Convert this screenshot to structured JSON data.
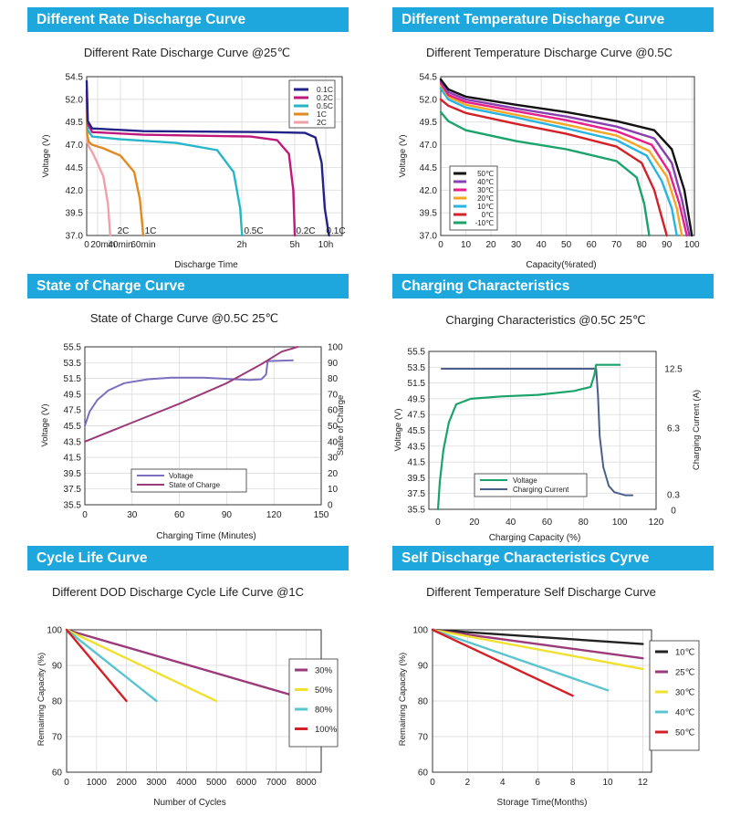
{
  "panels": [
    {
      "heading": "Different Rate Discharge Curve"
    },
    {
      "heading": "Different Temperature Discharge Curve"
    },
    {
      "heading": "State of Charge Curve"
    },
    {
      "heading": "Charging Characteristics"
    },
    {
      "heading": "Cycle Life Curve"
    },
    {
      "heading": "Self Discharge Characteristics Cyrve"
    }
  ],
  "chart_data": [
    {
      "type": "line",
      "title": "Different Rate Discharge Curve @25℃",
      "xlabel": "Discharge Time",
      "ylabel": "Voltage (V)",
      "ylim": [
        37,
        54.5
      ],
      "yticks": [
        "54.5",
        "52.0",
        "49.5",
        "47.0",
        "44.5",
        "42.0",
        "39.5",
        "37.0"
      ],
      "xticks": [
        {
          "t": 0,
          "label": "0"
        },
        {
          "t": 20,
          "label": "20min"
        },
        {
          "t": 40,
          "label": "40min"
        },
        {
          "t": 60,
          "label": "60min"
        },
        {
          "t": 120,
          "label": "2h"
        },
        {
          "t": 300,
          "label": "5h"
        },
        {
          "t": 600,
          "label": "10h"
        }
      ],
      "x_unit": "minutes",
      "series": [
        {
          "name": "0.1C",
          "color": "#222288",
          "points": [
            [
              0,
              54
            ],
            [
              2,
              49.6
            ],
            [
              10,
              48.8
            ],
            [
              60,
              48.5
            ],
            [
              200,
              48.4
            ],
            [
              400,
              48.3
            ],
            [
              500,
              47.8
            ],
            [
              560,
              45
            ],
            [
              590,
              40
            ],
            [
              605,
              37
            ]
          ]
        },
        {
          "name": "0.2C",
          "color": "#c0187a",
          "points": [
            [
              0,
              53
            ],
            [
              2,
              49.3
            ],
            [
              10,
              48.4
            ],
            [
              60,
              48.1
            ],
            [
              150,
              47.9
            ],
            [
              240,
              47.5
            ],
            [
              280,
              46
            ],
            [
              295,
              42
            ],
            [
              301,
              37
            ]
          ]
        },
        {
          "name": "0.5C",
          "color": "#27b6c8",
          "points": [
            [
              0,
              52.5
            ],
            [
              2,
              48.6
            ],
            [
              10,
              47.9
            ],
            [
              40,
              47.6
            ],
            [
              80,
              47.2
            ],
            [
              105,
              46.4
            ],
            [
              115,
              44
            ],
            [
              119,
              40
            ],
            [
              121,
              37
            ]
          ]
        },
        {
          "name": "1C",
          "color": "#e08a20",
          "points": [
            [
              0,
              52
            ],
            [
              1,
              48
            ],
            [
              4,
              47.3
            ],
            [
              10,
              47
            ],
            [
              25,
              46.6
            ],
            [
              40,
              45.8
            ],
            [
              52,
              44
            ],
            [
              57,
              41
            ],
            [
              60,
              37
            ]
          ]
        },
        {
          "name": "2C",
          "color": "#f0a0a8",
          "points": [
            [
              0,
              51
            ],
            [
              1,
              47.3
            ],
            [
              4,
              46.8
            ],
            [
              10,
              46.2
            ],
            [
              18,
              45.2
            ],
            [
              25,
              43.5
            ],
            [
              29,
              40.5
            ],
            [
              31,
              37
            ]
          ]
        }
      ],
      "point_labels": [
        "2C",
        "1C",
        "0.5C",
        "0.2C",
        "0.1C"
      ]
    },
    {
      "type": "line",
      "title": "Different Temperature Discharge Curve @0.5C",
      "xlabel": "Capacity(%rated)",
      "ylabel": "Voltage (V)",
      "xlim": [
        0,
        100
      ],
      "ylim": [
        37,
        54.5
      ],
      "yticks": [
        "54.5",
        "52.0",
        "49.5",
        "47.0",
        "44.5",
        "42.0",
        "39.5",
        "37.0"
      ],
      "xticks": [
        "0",
        "10",
        "20",
        "30",
        "40",
        "50",
        "60",
        "70",
        "80",
        "90",
        "100"
      ],
      "series": [
        {
          "name": "50℃",
          "color": "#111111",
          "points": [
            [
              0,
              54.2
            ],
            [
              3,
              53.1
            ],
            [
              10,
              52.3
            ],
            [
              30,
              51.4
            ],
            [
              50,
              50.6
            ],
            [
              70,
              49.6
            ],
            [
              85,
              48.6
            ],
            [
              92,
              46.5
            ],
            [
              97,
              42
            ],
            [
              100,
              37
            ]
          ]
        },
        {
          "name": "40℃",
          "color": "#8a3fb0",
          "points": [
            [
              0,
              54
            ],
            [
              3,
              52.8
            ],
            [
              10,
              52
            ],
            [
              30,
              51
            ],
            [
              50,
              50.1
            ],
            [
              70,
              49
            ],
            [
              85,
              47.7
            ],
            [
              92,
              45
            ],
            [
              96,
              41
            ],
            [
              99,
              37
            ]
          ]
        },
        {
          "name": "30℃",
          "color": "#e81e8a",
          "points": [
            [
              0,
              53.8
            ],
            [
              3,
              52.5
            ],
            [
              10,
              51.7
            ],
            [
              30,
              50.7
            ],
            [
              50,
              49.7
            ],
            [
              70,
              48.5
            ],
            [
              84,
              47
            ],
            [
              91,
              44
            ],
            [
              95,
              40.5
            ],
            [
              98,
              37
            ]
          ]
        },
        {
          "name": "20℃",
          "color": "#f5a623",
          "points": [
            [
              0,
              53.6
            ],
            [
              3,
              52.3
            ],
            [
              10,
              51.4
            ],
            [
              30,
              50.3
            ],
            [
              50,
              49.2
            ],
            [
              70,
              48
            ],
            [
              83,
              46.3
            ],
            [
              90,
              43.5
            ],
            [
              94,
              40
            ],
            [
              96,
              37
            ]
          ]
        },
        {
          "name": "10℃",
          "color": "#28b4e3",
          "points": [
            [
              0,
              53.2
            ],
            [
              3,
              52
            ],
            [
              10,
              51.1
            ],
            [
              30,
              50
            ],
            [
              50,
              48.8
            ],
            [
              70,
              47.5
            ],
            [
              82,
              45.8
            ],
            [
              88,
              43
            ],
            [
              92,
              40
            ],
            [
              94,
              37
            ]
          ]
        },
        {
          "name": "0℃",
          "color": "#d42027",
          "points": [
            [
              0,
              52
            ],
            [
              3,
              51.3
            ],
            [
              10,
              50.5
            ],
            [
              30,
              49.3
            ],
            [
              50,
              48.2
            ],
            [
              70,
              46.8
            ],
            [
              80,
              45
            ],
            [
              85,
              42
            ],
            [
              88,
              39
            ],
            [
              90,
              37
            ]
          ]
        },
        {
          "name": "-10℃",
          "color": "#1aa36a",
          "points": [
            [
              0,
              50.6
            ],
            [
              3,
              49.6
            ],
            [
              10,
              48.6
            ],
            [
              30,
              47.4
            ],
            [
              50,
              46.5
            ],
            [
              70,
              45.2
            ],
            [
              78,
              43.4
            ],
            [
              81,
              40.5
            ],
            [
              83,
              37
            ]
          ]
        }
      ]
    },
    {
      "type": "line",
      "title": "State of Charge Curve @0.5C 25℃",
      "xlabel": "Charging Time (Minutes)",
      "ylabel": "Voltage (V)",
      "y2label": "State of Charge",
      "xlim": [
        0,
        150
      ],
      "ylim": [
        35.5,
        55.5
      ],
      "y2lim": [
        0,
        100
      ],
      "yticks": [
        "55.5",
        "53.5",
        "51.5",
        "49.5",
        "47.5",
        "45.5",
        "43.5",
        "41.5",
        "39.5",
        "37.5",
        "35.5"
      ],
      "y2ticks": [
        "100",
        "90",
        "80",
        "70",
        "60",
        "50",
        "40",
        "30",
        "20",
        "10",
        "0"
      ],
      "xticks": [
        "0",
        "30",
        "60",
        "90",
        "120",
        "150"
      ],
      "series": [
        {
          "name": "Voltage",
          "axis": "left",
          "color": "#7b6fc0",
          "points": [
            [
              0,
              45.5
            ],
            [
              3,
              47.3
            ],
            [
              8,
              48.8
            ],
            [
              15,
              50
            ],
            [
              25,
              50.9
            ],
            [
              40,
              51.4
            ],
            [
              55,
              51.6
            ],
            [
              75,
              51.6
            ],
            [
              95,
              51.4
            ],
            [
              105,
              51.3
            ],
            [
              112,
              51.4
            ],
            [
              115,
              52
            ],
            [
              116,
              53.7
            ],
            [
              132,
              53.8
            ]
          ]
        },
        {
          "name": "State of Charge",
          "axis": "right",
          "color": "#9b3b7a",
          "points": [
            [
              0,
              40
            ],
            [
              30,
              52
            ],
            [
              60,
              64
            ],
            [
              90,
              77
            ],
            [
              112,
              89
            ],
            [
              125,
              97
            ],
            [
              132,
              99
            ],
            [
              135,
              100
            ]
          ]
        }
      ]
    },
    {
      "type": "line",
      "title": "Charging Characteristics @0.5C 25℃",
      "xlabel": "Charging Capacity (%)",
      "ylabel": "Voltage (V)",
      "y2label": "Charging Current (A)",
      "xlim": [
        -5,
        120
      ],
      "ylim": [
        35.5,
        55.5
      ],
      "yticks": [
        "55.5",
        "53.5",
        "51.5",
        "49.5",
        "47.5",
        "45.5",
        "43.5",
        "41.5",
        "39.5",
        "37.5",
        "35.5"
      ],
      "y2ticks": [
        "12.5",
        "6.3",
        "0.3",
        "0"
      ],
      "xticks": [
        "0",
        "20",
        "40",
        "60",
        "80",
        "100",
        "120"
      ],
      "series": [
        {
          "name": "Voltage",
          "axis": "left",
          "color": "#1aa36a",
          "points": [
            [
              0,
              35.5
            ],
            [
              1,
              39
            ],
            [
              3,
              43
            ],
            [
              6,
              46.5
            ],
            [
              10,
              48.8
            ],
            [
              18,
              49.5
            ],
            [
              35,
              49.8
            ],
            [
              55,
              50
            ],
            [
              75,
              50.5
            ],
            [
              84,
              51
            ],
            [
              86,
              52.5
            ],
            [
              87,
              53.8
            ],
            [
              100,
              53.8
            ]
          ]
        },
        {
          "name": "Charging Current",
          "axis": "right",
          "color": "#4a5f8c",
          "points": [
            [
              2,
              12.5
            ],
            [
              87,
              12.5
            ],
            [
              88,
              10
            ],
            [
              89,
              6
            ],
            [
              91,
              3
            ],
            [
              94,
              1.2
            ],
            [
              97,
              0.6
            ],
            [
              103,
              0.3
            ],
            [
              107,
              0.3
            ]
          ]
        }
      ]
    },
    {
      "type": "line",
      "title": "Different DOD Discharge Cycle Life Curve @1C",
      "xlabel": "Number of Cycles",
      "ylabel": "Remaining Capacity (%)",
      "xlim": [
        0,
        8500
      ],
      "ylim": [
        60,
        100
      ],
      "yticks": [
        "100",
        "90",
        "80",
        "70",
        "60"
      ],
      "xticks": [
        "0",
        "1000",
        "2000",
        "3000",
        "4000",
        "5000",
        "6000",
        "7000",
        "8000"
      ],
      "series": [
        {
          "name": "30%",
          "color": "#9b3b7a",
          "points": [
            [
              0,
              100
            ],
            [
              8000,
              80.5
            ]
          ]
        },
        {
          "name": "50%",
          "color": "#f0e030",
          "points": [
            [
              0,
              100
            ],
            [
              5000,
              80
            ]
          ]
        },
        {
          "name": "80%",
          "color": "#5bc4cf",
          "points": [
            [
              0,
              100
            ],
            [
              3000,
              80
            ]
          ]
        },
        {
          "name": "100%",
          "color": "#d42027",
          "points": [
            [
              0,
              100
            ],
            [
              2000,
              80
            ]
          ]
        }
      ]
    },
    {
      "type": "line",
      "title": "Different Temperature Self Discharge Curve",
      "xlabel": "Storage Time(Months)",
      "ylabel": "Remaining Capacity (%)",
      "xlim": [
        0,
        12.5
      ],
      "ylim": [
        60,
        100
      ],
      "yticks": [
        "100",
        "90",
        "80",
        "70",
        "60"
      ],
      "xticks": [
        "0",
        "2",
        "4",
        "6",
        "8",
        "10",
        "12"
      ],
      "series": [
        {
          "name": "10℃",
          "color": "#222222",
          "points": [
            [
              0,
              100
            ],
            [
              12,
              96
            ]
          ]
        },
        {
          "name": "25℃",
          "color": "#9b3b7a",
          "points": [
            [
              0,
              100
            ],
            [
              12,
              92
            ]
          ]
        },
        {
          "name": "30℃",
          "color": "#f0e030",
          "points": [
            [
              0,
              100
            ],
            [
              12,
              89
            ]
          ]
        },
        {
          "name": "40℃",
          "color": "#5bc4cf",
          "points": [
            [
              0,
              100
            ],
            [
              10,
              83
            ]
          ]
        },
        {
          "name": "50℃",
          "color": "#d42027",
          "points": [
            [
              0,
              100
            ],
            [
              8,
              81.5
            ]
          ]
        }
      ]
    }
  ]
}
